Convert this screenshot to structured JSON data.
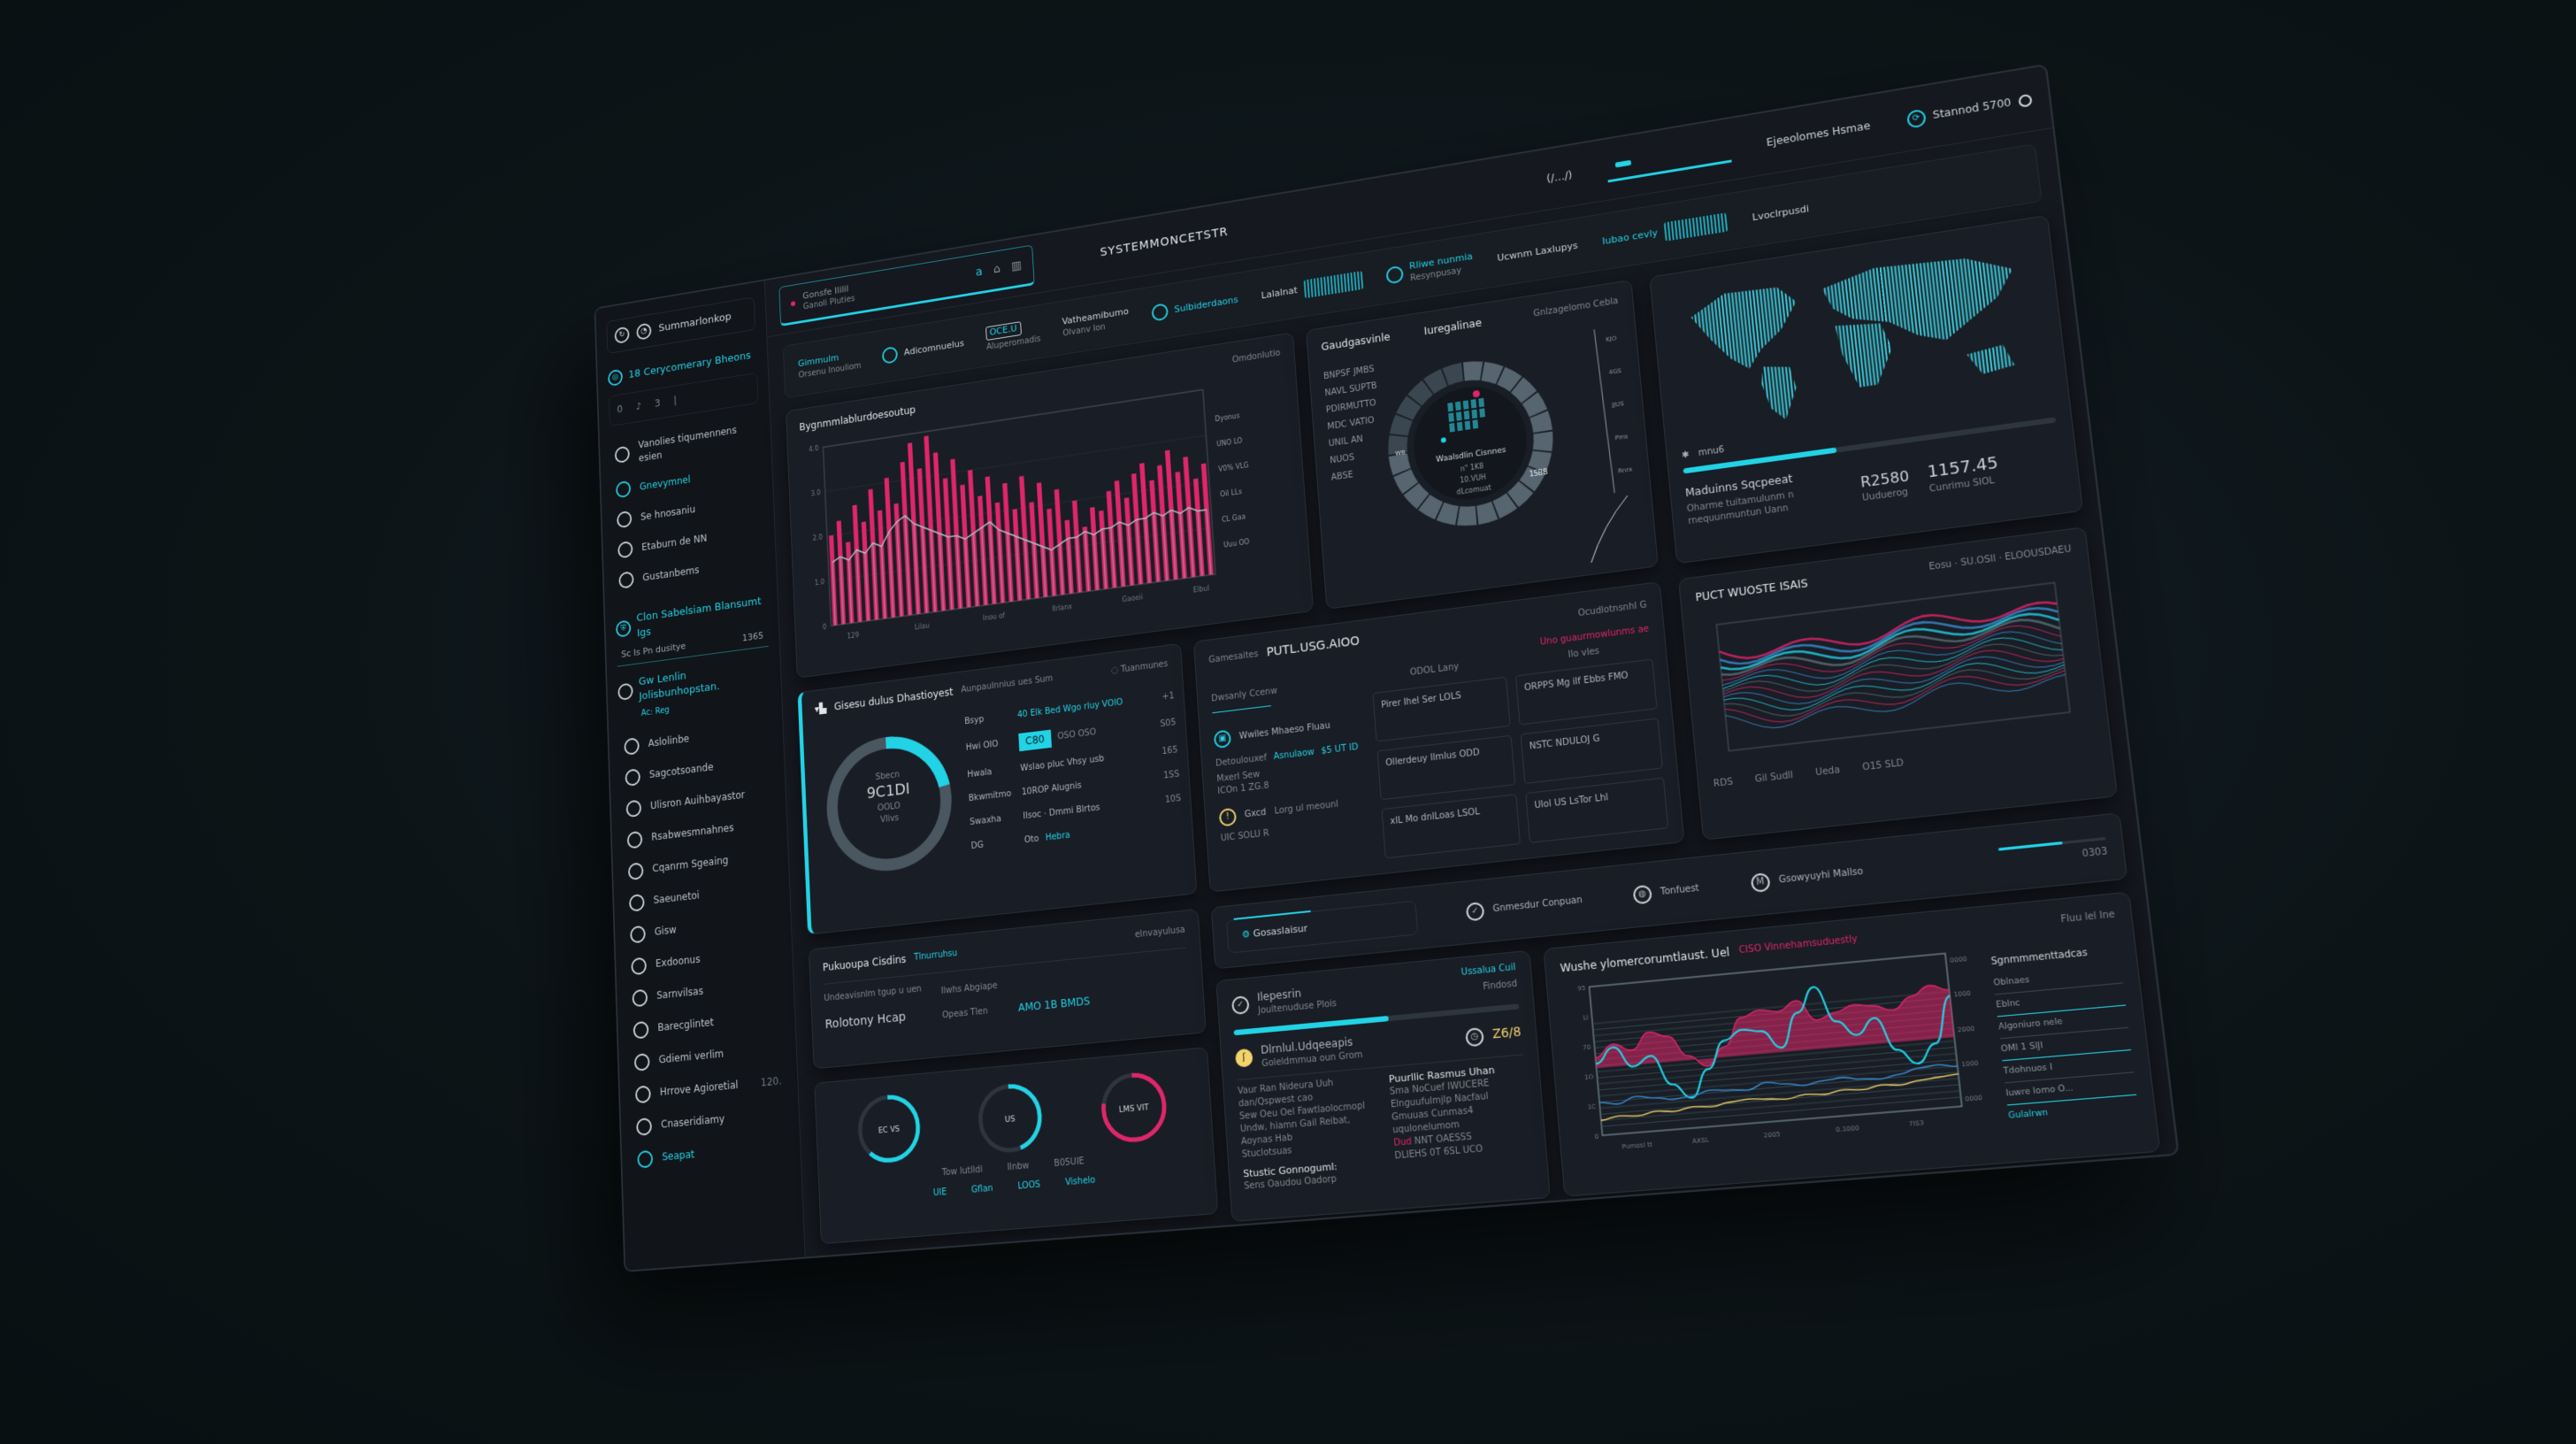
{
  "colors": {
    "accent": "#22d3e6",
    "alert": "#e0266a",
    "warning": "#f3d36b",
    "panel": "#191d25",
    "background": "#0c1417"
  },
  "sidebar": {
    "brand": "Summarlonkop",
    "section_title": "18 Cerycomerary Bheons",
    "mini": [
      "0",
      "♪",
      "3",
      "|"
    ],
    "items_top": [
      {
        "label": "Vanolies tiqumennens esien",
        "icon": "globe-icon"
      },
      {
        "label": "Gnevymnel",
        "icon": "check-circle-icon",
        "active": true
      },
      {
        "label": "Se hnosaniu",
        "icon": "circle-icon"
      },
      {
        "label": "Etaburn de NN",
        "icon": "clock-icon"
      },
      {
        "label": "Gustanbems",
        "icon": "circle-icon"
      }
    ],
    "section2_title": "Clon Sabelsiam Blansumt Igs",
    "section2_sub": {
      "label": "Sc Is Pn  dusitye",
      "value": "1365"
    },
    "section3_title": "Gw Lenlin Jolisbunhopstan.",
    "section3_sub": "Ac: Reg",
    "items": [
      {
        "label": "Aslolinbe",
        "icon": "shield-icon",
        "count": ""
      },
      {
        "label": "Sagcotsoande",
        "icon": "refresh-icon",
        "count": ""
      },
      {
        "label": "Ulisron Auihbayastor",
        "icon": "cloud-icon",
        "count": ""
      },
      {
        "label": "Rsabwesmnahnes",
        "icon": "clock-icon",
        "count": ""
      },
      {
        "label": "Cqanrm Sgeaing",
        "icon": "circle-icon",
        "count": ""
      },
      {
        "label": "Saeunetoi",
        "icon": "chart-icon",
        "count": ""
      },
      {
        "label": "Gisw",
        "icon": "circle-icon",
        "count": ""
      },
      {
        "label": "Exdoonus",
        "icon": "document-icon",
        "count": ""
      },
      {
        "label": "Sarnvilsas",
        "icon": "cloud-icon",
        "count": ""
      },
      {
        "label": "Barecglintet",
        "icon": "lock-icon",
        "count": ""
      },
      {
        "label": "Gdiemi verlim",
        "icon": "circle-icon",
        "count": ""
      },
      {
        "label": "Hrrove Agioretial",
        "icon": "circle-icon",
        "count": "120."
      },
      {
        "label": "Cnaseridiamy",
        "icon": "info-icon",
        "count": ""
      },
      {
        "label": "Seapat",
        "icon": "send-icon",
        "count": "",
        "active": true
      }
    ]
  },
  "topbar": {
    "search_title": "Gonsfe Ililil",
    "search_sub": "Ganoli Pluties",
    "icons": [
      "a",
      "⌂",
      "▥"
    ],
    "title": "SYSTEMMONCETSTR",
    "code": "(/…/)",
    "menu": "Ejeeolomes Hsmae",
    "user": "Stannod 5700"
  },
  "strip": [
    {
      "label": "Gimmulm",
      "sub": "Orsenu Inouliom",
      "kind": "text"
    },
    {
      "label": "Adicomnuelus",
      "kind": "icon"
    },
    {
      "label": "OCE.U",
      "sub": "Aluperomadis",
      "kind": "badge"
    },
    {
      "label": "Vatheamibumo",
      "sub": "Olvanv Ion",
      "kind": "text"
    },
    {
      "label": "Sulbiderdaons",
      "kind": "icon"
    },
    {
      "label": "Lalalnat",
      "kind": "spark"
    },
    {
      "label": "Rliwe nunmia",
      "sub": "Resynpusay",
      "kind": "icon"
    },
    {
      "label": "Ucwnm Laxlupys",
      "kind": "text"
    },
    {
      "label": "Iubao cevly",
      "kind": "spark"
    },
    {
      "label": "Lvoclrpusdi",
      "kind": "text"
    }
  ],
  "bar_panel": {
    "header_right": "Omdonlutio",
    "title": "Bygnmmlablurdoesoutup",
    "y_ticks": [
      "0",
      "1.0",
      "2.0",
      "3.0",
      "4.0"
    ],
    "x_ticks": [
      "129",
      "Lilau",
      "Inou of",
      "Ilrlanx",
      "Gaoeii",
      "Elbul"
    ],
    "legend": [
      "Dyonus",
      "UNO LO",
      "V0% VLG",
      "Oil LLs",
      "CL Gaa",
      "Uuu OO"
    ],
    "values_alert": [
      2.0,
      2.3,
      1.8,
      2.6,
      2.2,
      2.9,
      2.4,
      3.1,
      2.5,
      3.4,
      3.8,
      3.2,
      3.9,
      3.5,
      2.9,
      3.3,
      2.7,
      3.0,
      2.4,
      2.8,
      2.2,
      2.6,
      2.0,
      2.7,
      2.1,
      2.5,
      1.9,
      2.3,
      1.6,
      2.0,
      1.4,
      1.8,
      1.7,
      2.1,
      2.3,
      1.9,
      2.4,
      2.6,
      2.2,
      2.5,
      2.8,
      2.3,
      2.6,
      2.1,
      2.4
    ],
    "values_base": [
      1.4,
      1.5,
      1.4,
      1.6,
      1.5,
      1.7,
      1.6,
      1.9,
      2.1,
      2.2,
      2.0,
      1.9,
      1.8,
      1.7,
      1.6,
      1.6,
      1.5,
      1.6,
      1.7,
      1.8,
      1.6,
      1.5,
      1.4,
      1.3,
      1.2,
      1.1,
      1.0,
      1.1,
      1.2,
      1.2,
      1.3,
      1.2,
      1.3,
      1.3,
      1.4,
      1.3,
      1.4,
      1.4,
      1.5,
      1.4,
      1.5,
      1.4,
      1.5,
      1.4,
      1.4
    ]
  },
  "radial_panel": {
    "title": "Gaudgasvinle",
    "subtitle": "Iuregalinae",
    "right": "Gnlzagelomo Cebla",
    "left_list": [
      "BNPSF JMBS",
      "NAVL SUPTB",
      "PDIRMUTTO",
      "MDC VATIO",
      "UNIL AN",
      "NUOS",
      "ABSE"
    ],
    "center_title": "Waalsdlin Cisnnes",
    "center_lines": [
      "n\" 1K8",
      "10.VUH",
      "dLcomuat"
    ],
    "ring_label": "1SBB",
    "ring_left": "WB",
    "axis_labels": [
      "KJO",
      "4GS",
      "JJUS",
      "Pms",
      "Rnrx"
    ],
    "ring_value": 0.75
  },
  "map_panel": {
    "legend": "mnu6",
    "progress": 0.42,
    "title": "Maduinns Sqcpeeat",
    "desc": "Oharme tuitamulunm n rnequunmuntun Uann",
    "stat1_value": "R2580",
    "stat1_label": "Uuduerog",
    "stat2_value": "1157.45",
    "stat2_label": "Cunrimu SIOL"
  },
  "donut_panel": {
    "title": "Gisesu dulus Dhastioyest",
    "subtitle": "Aunpaulnnius ues Sum",
    "status": "Tuanmunes",
    "center_label": "Sbecn",
    "center_value": "9C1DI",
    "center_sub": "OOLO",
    "center_sub2": "Vlivs",
    "ring_value": 0.22,
    "rows": [
      {
        "label": "Bsyp",
        "value": "40 Elk Bed Wgo rluy VOlO",
        "accent": true,
        "right": "+1"
      },
      {
        "label": "Hwi OIO",
        "value": "C80",
        "badge": true,
        "extra": "OSO OSO",
        "right": "S05"
      },
      {
        "label": "Hwala",
        "value": "Wslao pluc Vhsy usb",
        "right": "165"
      },
      {
        "label": "Bkwmitmo",
        "value": "10ROP Alugnis",
        "right": "1SS"
      },
      {
        "label": "Swaxha",
        "value": "Ilsoc · Dmmi Blrtos",
        "right": "10S"
      },
      {
        "label": "DG",
        "value": "Oto",
        "status": "Hebra",
        "right": ""
      }
    ]
  },
  "table_panel": {
    "title_prefix": "Gamesaites",
    "title": "PUTL.USG.AIOO",
    "top_right": "Ocudlotnsnhl G",
    "alert": "Uno guaurmowlunms ae",
    "subtitle": "Dwsanly Ccenw",
    "col_a": "ODOL Lany",
    "col_b": "Ilo vles",
    "section": "Wwiles Mhaeso Fluau",
    "kpi": "Asnulaow",
    "kpi_value": "$5 UT ID",
    "lines": [
      "Detoulouxef",
      "Mxerl Sew",
      "ICOn 1 ZG.8"
    ],
    "warn_label": "Gxcd",
    "warn_desc": "Lorg ul meounl",
    "foot": "UIC SOLU R",
    "cells": [
      "Pirer Ihel Ser LOLS",
      "ORPPS Mg ilf Ebbs FMO",
      "Ollerdeuy Ilmlus ODD",
      "NSTC NDULOJ G",
      "xlL Mo dnlLoas LSOL",
      "Ulol US LsTor Lhl"
    ]
  },
  "stream_panel": {
    "title": "PUCT WUOSTE ISAIS",
    "right": "Eosu · SU.OSIl · ELOOUSDAEU",
    "footer": [
      "RDS",
      "Gil Sudll",
      "Ueda",
      "O15 SLD"
    ]
  },
  "status_strip": {
    "left": "Gosaslaisur",
    "items": [
      "Gnmesdur Conpuan",
      "Tonfuest",
      "Gsowyuyhi Mallso"
    ],
    "right": "0303",
    "progress": 0.6
  },
  "policy_panel": {
    "title": "Pukuoupa Cisdins",
    "tag": "Tlnurruhsu",
    "right": "elnvayulusa",
    "desc": "Undeavisnlm tgup u uen",
    "label": "Ilwhs Abgiape",
    "big": "Rolotony Hcap",
    "small": "Opeas Tlen",
    "value": "AMO 1B BMDS"
  },
  "gauge_panel": {
    "gauges": [
      {
        "label": "EC VS",
        "value": 0.62
      },
      {
        "label": "US",
        "value": 0.45
      },
      {
        "label": "LMS VIT",
        "value": 0.78
      }
    ],
    "footer": [
      "Tow lutlldi",
      "Ilnbw",
      "B05UIE"
    ],
    "footer_links": [
      "UIE",
      "Gflan",
      "LOOS",
      "Vishelo"
    ]
  },
  "process_panel": {
    "link": "Ussalua Cuil",
    "sub_right": "Findosd",
    "title": "Ilepesrin",
    "subtitle": "Joultenuduse Plois",
    "progress": 0.55,
    "warn_title": "Dlrnlul.Udqeeapis",
    "warn_sub": "Goleldmmua oun Grom",
    "gauge_value": "Z6/8",
    "desc": [
      "Vaur Ran Nideura Uuh dan/Qspwest cao",
      "Sew Oeu Oel Fawtlaolocmopl",
      "Undw, hiamn Gail Reibat, Aoynas Hab",
      "Stuclotsuas"
    ],
    "col_title": "Puurllic Rasmus Uhan",
    "col_sub": [
      "Sma NoCuef",
      "IWUCERE"
    ],
    "col_desc": "Elnguufulmjlp Nacfaul Gmuuas Cunmas4 uqulonelumom",
    "alert_tag": "Dud",
    "alert_value": "NNT OAESSS",
    "alert_line": "DLIEHS 0T 6SL UCO",
    "foot_title": "Stustic Gonnoguml:",
    "foot_sub": "Sens Oaudou Oadorp"
  },
  "area_panel": {
    "title": "Wushe ylomercorumtlaust. Uel",
    "alert": "CISO Vinnehamsuduestly",
    "right": "Fluu lel Ine",
    "y_ticks": [
      "0",
      "1C",
      "1O",
      "70",
      "Ll",
      "95"
    ],
    "x_ticks": [
      "Pumosl tt",
      "AXSL",
      "2005",
      "0.1000",
      "7IS3"
    ],
    "right_ticks": [
      "0000",
      "1000",
      "2000",
      "1000",
      "0000"
    ],
    "side_title": "Sgnmmmenttadcas",
    "side_items": [
      "Oblnaes",
      "Eblnc",
      "Algoniuro nele",
      "OMI 1 SIJI",
      "Tdohnuos I",
      "Iuwre lomo O..."
    ],
    "side_link": "Gulalrwn",
    "series": [
      {
        "color": "#e0266a",
        "values": [
          52,
          60,
          55,
          66,
          62,
          48,
          40,
          52,
          70,
          74,
          72,
          78,
          64,
          68,
          72,
          70,
          66,
          74,
          80,
          76
        ]
      },
      {
        "color": "#22d3e6",
        "values": [
          48,
          58,
          44,
          50,
          30,
          20,
          38,
          56,
          62,
          60,
          48,
          70,
          86,
          62,
          52,
          62,
          40,
          30,
          42,
          72
        ]
      },
      {
        "color": "#3a8fd6",
        "values": [
          22,
          20,
          24,
          22,
          20,
          21,
          24,
          23,
          22,
          26,
          24,
          22,
          24,
          25,
          23,
          22,
          24,
          27,
          28,
          26
        ]
      },
      {
        "color": "#f3d36b",
        "values": [
          10,
          12,
          11,
          13,
          12,
          14,
          13,
          15,
          16,
          15,
          14,
          16,
          15,
          17,
          16,
          18,
          17,
          19,
          20,
          21
        ]
      }
    ]
  }
}
